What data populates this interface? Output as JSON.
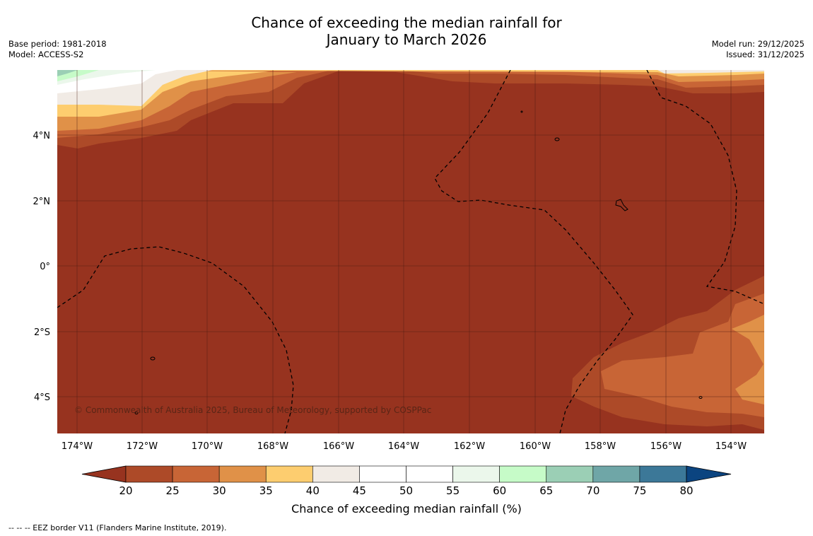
{
  "title_line1": "Chance of exceeding the median rainfall for",
  "title_line2": "January to March 2026",
  "base_period": "Base period: 1981-2018",
  "model": "Model: ACCESS-S2",
  "model_run": "Model run: 29/12/2025",
  "issued": "Issued: 31/12/2025",
  "copyright": "© Commonwealth of Australia 2025, Bureau of Meteorology, supported by COSPPac",
  "lon_labels": [
    "174°W",
    "172°W",
    "170°W",
    "168°W",
    "166°W",
    "164°W",
    "162°W",
    "160°W",
    "158°W",
    "156°W",
    "154°W"
  ],
  "lat_labels": [
    "4°N",
    "2°N",
    "0°",
    "2°S",
    "4°S"
  ],
  "colorbar": {
    "label": "Chance of exceeding median rainfall (%)",
    "ticks": [
      "20",
      "25",
      "30",
      "35",
      "40",
      "45",
      "50",
      "55",
      "60",
      "65",
      "70",
      "75",
      "80"
    ],
    "colors": [
      "#97331f",
      "#ad4a28",
      "#c86536",
      "#e09148",
      "#fdcd6f",
      "#f1ebe5",
      "#ffffff",
      "#ffffff",
      "#ebf7eb",
      "#c6fbc8",
      "#9bcfb5",
      "#6fa6a7",
      "#3c7898",
      "#0b4480"
    ]
  },
  "footer": "--  --  -- EEZ border V11 (Flanders Marine Institute, 2019)."
}
